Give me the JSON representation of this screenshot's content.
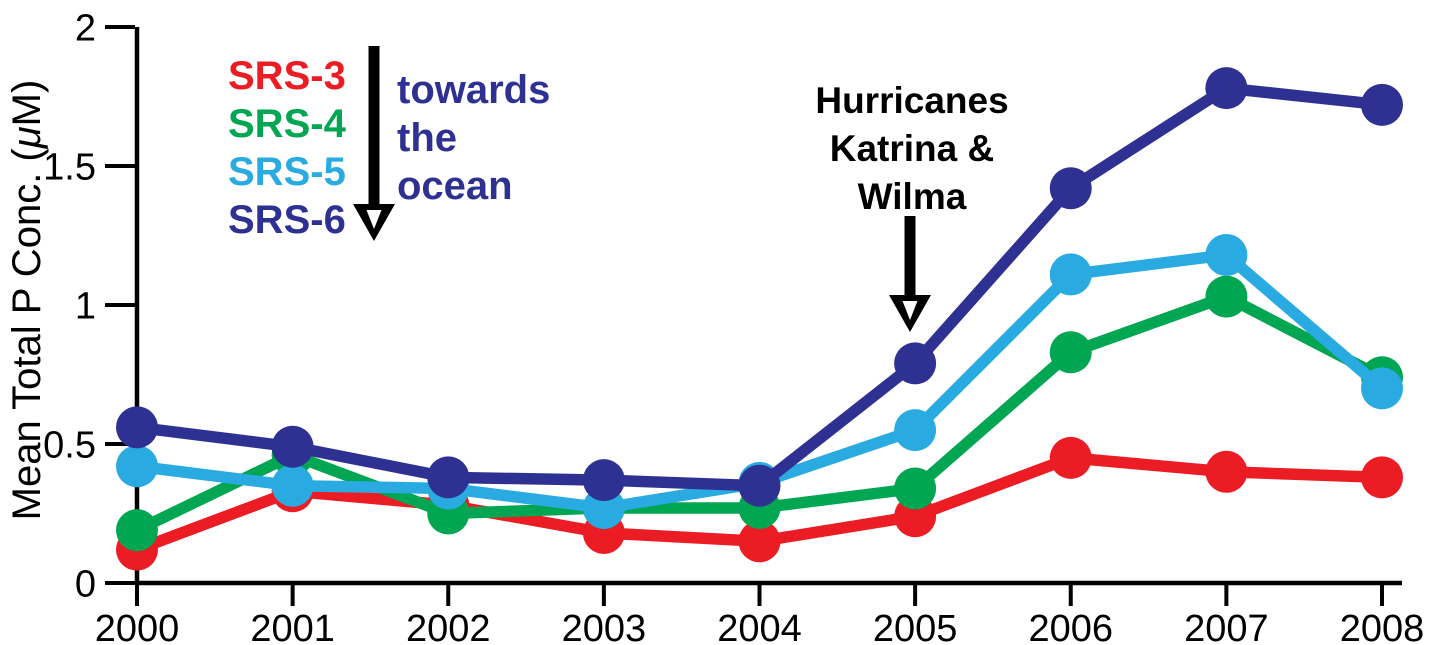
{
  "figure": {
    "background": "#ffffff",
    "axis_color": "#000000"
  },
  "chart_data": {
    "type": "line",
    "title": "",
    "xlabel": "",
    "ylabel": "Mean Total P Conc. (μM)",
    "ylabel_parts": {
      "prefix": "Mean Total P Conc. (",
      "mu": "μ",
      "suffix": "M)"
    },
    "x": [
      2000,
      2001,
      2002,
      2003,
      2004,
      2005,
      2006,
      2007,
      2008
    ],
    "x_tick_labels": [
      "2000",
      "2001",
      "2002",
      "2003",
      "2004",
      "2005",
      "2006",
      "2007",
      "2008"
    ],
    "y_ticks": [
      0,
      0.5,
      1,
      1.5,
      2
    ],
    "y_tick_labels": [
      "0",
      "0.5",
      "1",
      "1.5",
      "2"
    ],
    "ylim": [
      0,
      2
    ],
    "grid": false,
    "legend_position": "top-left",
    "series": [
      {
        "name": "SRS-3",
        "color": "#EC1C24",
        "values": [
          0.12,
          0.33,
          0.28,
          0.18,
          0.15,
          0.24,
          0.45,
          0.4,
          0.38
        ]
      },
      {
        "name": "SRS-4",
        "color": "#00A651",
        "values": [
          0.19,
          0.46,
          0.25,
          0.27,
          0.27,
          0.34,
          0.83,
          1.03,
          0.74
        ]
      },
      {
        "name": "SRS-5",
        "color": "#29ABE2",
        "values": [
          0.42,
          0.35,
          0.34,
          0.27,
          0.36,
          0.55,
          1.11,
          1.18,
          0.7
        ]
      },
      {
        "name": "SRS-6",
        "color": "#2E3192",
        "values": [
          0.56,
          0.49,
          0.38,
          0.37,
          0.35,
          0.79,
          1.42,
          1.78,
          1.72
        ]
      }
    ]
  },
  "annotations": {
    "towards_ocean": {
      "lines": [
        "towards",
        "the",
        "ocean"
      ],
      "color": "#2E3192",
      "arrow_color": "#000000"
    },
    "hurricanes": {
      "lines": [
        "Hurricanes",
        "Katrina &",
        "Wilma"
      ],
      "color": "#000000",
      "arrow_color": "#000000",
      "points_to_year": "2005"
    }
  }
}
